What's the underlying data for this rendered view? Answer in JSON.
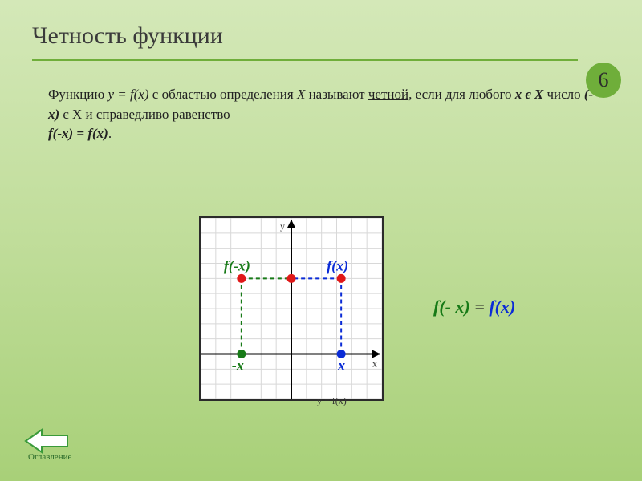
{
  "title": "Четность функции",
  "badge": "6",
  "paragraph": {
    "t1": "Функцию ",
    "fn": "y = f(x)",
    "t2": " с областью определения ",
    "XX": "X",
    "t3": " называют ",
    "even_word": "четной",
    "t4": ", если для любого ",
    "x_in": "x є X",
    "t5": " число ",
    "neg_x": "(- x)",
    "t6": " є X и справедливо равенство",
    "eq": "f(-x) = f(x)",
    "period": "."
  },
  "chart": {
    "type": "line",
    "background": "#ffffff",
    "grid_color": "#d8d8d8",
    "grid_step": 16,
    "axis_color": "#000000",
    "axis_width": 2,
    "curve_color": "#e01818",
    "curve_width": 2.5,
    "xlim": [
      -6,
      6
    ],
    "ylim": [
      -3,
      9
    ],
    "points": {
      "pos_x": {
        "x": 3.3,
        "y": 0,
        "color": "#0a2bd6",
        "label": "x"
      },
      "neg_x": {
        "x": -3.3,
        "y": 0,
        "color": "#177a17",
        "label": "-x"
      },
      "fpos": {
        "x": 3.3,
        "y": 5,
        "color": "#e01818",
        "label": "f(x)",
        "label_color": "#0a2bd6"
      },
      "fneg": {
        "x": -3.3,
        "y": 5,
        "color": "#e01818",
        "label": "f(-x)",
        "label_color": "#177a17"
      },
      "top": {
        "x": 0,
        "y": 5,
        "color": "#e01818"
      }
    },
    "dash_color_green": "#177a17",
    "dash_color_blue": "#0a2bd6",
    "axis_labels": {
      "x": "x",
      "y": "y"
    },
    "caption": "y = f(x)"
  },
  "equation_right": {
    "lhs": "f(- x)",
    "eq": " = ",
    "rhs": "f(x)"
  },
  "toc": {
    "label": "Оглавление",
    "arrow_fill": "#ffffff",
    "arrow_stroke": "#3a9a3a"
  },
  "colors": {
    "divider": "#6fae3a",
    "title": "#3a3a3a"
  }
}
